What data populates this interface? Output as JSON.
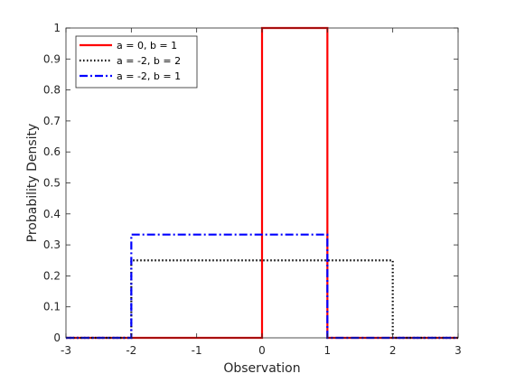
{
  "chart_data": {
    "type": "line",
    "title": "",
    "xlabel": "Observation",
    "ylabel": "Probability Density",
    "xlim": [
      -3,
      3
    ],
    "ylim": [
      0,
      1
    ],
    "xticks": [
      -3,
      -2,
      -1,
      0,
      1,
      2,
      3
    ],
    "xtick_labels": [
      "-3",
      "-2",
      "-1",
      "0",
      "1",
      "2",
      "3"
    ],
    "yticks": [
      0,
      0.1,
      0.2,
      0.3,
      0.4,
      0.5,
      0.6,
      0.7,
      0.8,
      0.9,
      1
    ],
    "ytick_labels": [
      "0",
      "0.1",
      "0.2",
      "0.3",
      "0.4",
      "0.5",
      "0.6",
      "0.7",
      "0.8",
      "0.9",
      "1"
    ],
    "grid": false,
    "legend_position": "top-left",
    "series": [
      {
        "name": "a = 0, b = 1",
        "color": "#ff0000",
        "style": "solid",
        "x": [
          -3,
          0,
          0,
          0,
          1,
          1,
          1,
          3
        ],
        "y": [
          0,
          0,
          0.5,
          1,
          1,
          0.5,
          0,
          0
        ]
      },
      {
        "name": "a = -2, b = 2",
        "color": "#000000",
        "style": "dotted",
        "x": [
          -3,
          -2,
          -2,
          2,
          2,
          3
        ],
        "y": [
          0,
          0,
          0.25,
          0.25,
          0,
          0
        ]
      },
      {
        "name": "a = -2, b = 1",
        "color": "#0000ff",
        "style": "dashdot",
        "x": [
          -3,
          -2,
          -2,
          1,
          1,
          3
        ],
        "y": [
          0,
          0,
          0.3333,
          0.3333,
          0,
          0
        ]
      }
    ]
  }
}
